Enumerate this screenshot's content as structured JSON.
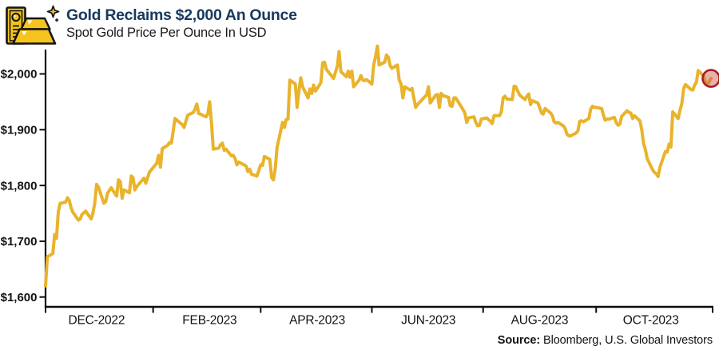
{
  "header": {
    "title": "Gold Reclaims $2,000 An Ounce",
    "subtitle": "Spot Gold Price Per Ounce In USD",
    "icon": "gold-bars-icon",
    "title_color": "#17395E"
  },
  "footer": {
    "source_label": "Source:",
    "source_text": " Bloomberg, U.S. Global Investors"
  },
  "chart_data": {
    "type": "line",
    "title": "Gold Reclaims $2,000 An Ounce",
    "subtitle": "Spot Gold Price Per Ounce In USD",
    "xlabel": "",
    "ylabel": "Spot gold price (USD per ounce)",
    "x_range": [
      "2022-11-03",
      "2023-11-03"
    ],
    "ylim": [
      1600,
      2060
    ],
    "grid": false,
    "legend": "none",
    "line_color": "#E9B32B",
    "axis_color": "#0d0d0d",
    "y_ticks": [
      {
        "value": 2000,
        "label": "$2,000"
      },
      {
        "value": 1900,
        "label": "$1,900"
      },
      {
        "value": 1800,
        "label": "$1,800"
      },
      {
        "value": 1700,
        "label": "$1,700"
      },
      {
        "value": 1600,
        "label": "$1,600"
      }
    ],
    "x_labels": [
      {
        "date": "2022-12-01",
        "label": "DEC-2022"
      },
      {
        "date": "2023-02-01",
        "label": "FEB-2023"
      },
      {
        "date": "2023-04-01",
        "label": "APR-2023"
      },
      {
        "date": "2023-06-01",
        "label": "JUN-2023"
      },
      {
        "date": "2023-08-01",
        "label": "AUG-2023"
      },
      {
        "date": "2023-10-01",
        "label": "OCT-2023"
      }
    ],
    "x_minor_ticks": [
      "2023-01-01",
      "2023-03-01",
      "2023-05-01",
      "2023-07-01",
      "2023-09-01"
    ],
    "highlight": {
      "date": "2023-11-03",
      "value": 1992,
      "fill": "rgba(201,85,75,0.45)",
      "stroke": "#A8201E"
    },
    "series": [
      {
        "name": "Spot Gold",
        "points": [
          [
            "2022-11-03",
            1620
          ],
          [
            "2022-11-04",
            1672
          ],
          [
            "2022-11-07",
            1678
          ],
          [
            "2022-11-08",
            1712
          ],
          [
            "2022-11-09",
            1705
          ],
          [
            "2022-11-10",
            1753
          ],
          [
            "2022-11-11",
            1768
          ],
          [
            "2022-11-14",
            1770
          ],
          [
            "2022-11-15",
            1778
          ],
          [
            "2022-11-16",
            1773
          ],
          [
            "2022-11-17",
            1760
          ],
          [
            "2022-11-18",
            1752
          ],
          [
            "2022-11-21",
            1738
          ],
          [
            "2022-11-22",
            1740
          ],
          [
            "2022-11-23",
            1748
          ],
          [
            "2022-11-25",
            1754
          ],
          [
            "2022-11-28",
            1740
          ],
          [
            "2022-11-29",
            1750
          ],
          [
            "2022-11-30",
            1768
          ],
          [
            "2022-12-01",
            1802
          ],
          [
            "2022-12-02",
            1797
          ],
          [
            "2022-12-05",
            1768
          ],
          [
            "2022-12-06",
            1771
          ],
          [
            "2022-12-07",
            1786
          ],
          [
            "2022-12-09",
            1796
          ],
          [
            "2022-12-12",
            1781
          ],
          [
            "2022-12-13",
            1810
          ],
          [
            "2022-12-14",
            1807
          ],
          [
            "2022-12-15",
            1777
          ],
          [
            "2022-12-16",
            1792
          ],
          [
            "2022-12-19",
            1787
          ],
          [
            "2022-12-20",
            1817
          ],
          [
            "2022-12-21",
            1814
          ],
          [
            "2022-12-22",
            1792
          ],
          [
            "2022-12-23",
            1798
          ],
          [
            "2022-12-27",
            1813
          ],
          [
            "2022-12-28",
            1804
          ],
          [
            "2022-12-29",
            1814
          ],
          [
            "2022-12-30",
            1824
          ],
          [
            "2023-01-03",
            1840
          ],
          [
            "2023-01-04",
            1854
          ],
          [
            "2023-01-05",
            1833
          ],
          [
            "2023-01-06",
            1866
          ],
          [
            "2023-01-09",
            1872
          ],
          [
            "2023-01-10",
            1877
          ],
          [
            "2023-01-11",
            1876
          ],
          [
            "2023-01-12",
            1897
          ],
          [
            "2023-01-13",
            1920
          ],
          [
            "2023-01-17",
            1909
          ],
          [
            "2023-01-18",
            1904
          ],
          [
            "2023-01-20",
            1926
          ],
          [
            "2023-01-23",
            1931
          ],
          [
            "2023-01-24",
            1937
          ],
          [
            "2023-01-25",
            1946
          ],
          [
            "2023-01-26",
            1929
          ],
          [
            "2023-01-27",
            1928
          ],
          [
            "2023-01-30",
            1923
          ],
          [
            "2023-01-31",
            1928
          ],
          [
            "2023-02-01",
            1950
          ],
          [
            "2023-02-02",
            1913
          ],
          [
            "2023-02-03",
            1865
          ],
          [
            "2023-02-06",
            1867
          ],
          [
            "2023-02-07",
            1873
          ],
          [
            "2023-02-08",
            1876
          ],
          [
            "2023-02-09",
            1863
          ],
          [
            "2023-02-10",
            1865
          ],
          [
            "2023-02-13",
            1853
          ],
          [
            "2023-02-14",
            1854
          ],
          [
            "2023-02-15",
            1848
          ],
          [
            "2023-02-16",
            1837
          ],
          [
            "2023-02-17",
            1842
          ],
          [
            "2023-02-21",
            1835
          ],
          [
            "2023-02-22",
            1825
          ],
          [
            "2023-02-23",
            1829
          ],
          [
            "2023-02-24",
            1820
          ],
          [
            "2023-02-27",
            1817
          ],
          [
            "2023-02-28",
            1827
          ],
          [
            "2023-03-01",
            1837
          ],
          [
            "2023-03-02",
            1836
          ],
          [
            "2023-03-03",
            1852
          ],
          [
            "2023-03-06",
            1847
          ],
          [
            "2023-03-07",
            1814
          ],
          [
            "2023-03-08",
            1810
          ],
          [
            "2023-03-09",
            1831
          ],
          [
            "2023-03-10",
            1868
          ],
          [
            "2023-03-13",
            1913
          ],
          [
            "2023-03-14",
            1904
          ],
          [
            "2023-03-15",
            1918
          ],
          [
            "2023-03-16",
            1919
          ],
          [
            "2023-03-17",
            1989
          ],
          [
            "2023-03-20",
            1982
          ],
          [
            "2023-03-21",
            1940
          ],
          [
            "2023-03-22",
            1970
          ],
          [
            "2023-03-23",
            1993
          ],
          [
            "2023-03-24",
            1977
          ],
          [
            "2023-03-27",
            1957
          ],
          [
            "2023-03-28",
            1973
          ],
          [
            "2023-03-29",
            1965
          ],
          [
            "2023-03-30",
            1980
          ],
          [
            "2023-03-31",
            1969
          ],
          [
            "2023-04-03",
            1984
          ],
          [
            "2023-04-04",
            2020
          ],
          [
            "2023-04-05",
            2021
          ],
          [
            "2023-04-06",
            2008
          ],
          [
            "2023-04-10",
            1992
          ],
          [
            "2023-04-11",
            2003
          ],
          [
            "2023-04-12",
            2014
          ],
          [
            "2023-04-13",
            2040
          ],
          [
            "2023-04-14",
            2004
          ],
          [
            "2023-04-17",
            1995
          ],
          [
            "2023-04-18",
            2005
          ],
          [
            "2023-04-19",
            1994
          ],
          [
            "2023-04-20",
            2005
          ],
          [
            "2023-04-21",
            1977
          ],
          [
            "2023-04-24",
            1989
          ],
          [
            "2023-04-25",
            1997
          ],
          [
            "2023-04-26",
            1989
          ],
          [
            "2023-04-27",
            1988
          ],
          [
            "2023-04-28",
            1990
          ],
          [
            "2023-05-01",
            1982
          ],
          [
            "2023-05-02",
            2016
          ],
          [
            "2023-05-03",
            2031
          ],
          [
            "2023-05-04",
            2050
          ],
          [
            "2023-05-05",
            2016
          ],
          [
            "2023-05-08",
            2021
          ],
          [
            "2023-05-09",
            2034
          ],
          [
            "2023-05-10",
            2030
          ],
          [
            "2023-05-11",
            2015
          ],
          [
            "2023-05-12",
            2010
          ],
          [
            "2023-05-15",
            2016
          ],
          [
            "2023-05-16",
            1989
          ],
          [
            "2023-05-17",
            1982
          ],
          [
            "2023-05-18",
            1957
          ],
          [
            "2023-05-19",
            1977
          ],
          [
            "2023-05-22",
            1971
          ],
          [
            "2023-05-23",
            1974
          ],
          [
            "2023-05-24",
            1957
          ],
          [
            "2023-05-25",
            1940
          ],
          [
            "2023-05-26",
            1945
          ],
          [
            "2023-05-30",
            1959
          ],
          [
            "2023-05-31",
            1962
          ],
          [
            "2023-06-01",
            1977
          ],
          [
            "2023-06-02",
            1948
          ],
          [
            "2023-06-05",
            1962
          ],
          [
            "2023-06-06",
            1963
          ],
          [
            "2023-06-07",
            1940
          ],
          [
            "2023-06-08",
            1965
          ],
          [
            "2023-06-09",
            1961
          ],
          [
            "2023-06-12",
            1958
          ],
          [
            "2023-06-13",
            1943
          ],
          [
            "2023-06-14",
            1942
          ],
          [
            "2023-06-15",
            1957
          ],
          [
            "2023-06-16",
            1957
          ],
          [
            "2023-06-20",
            1936
          ],
          [
            "2023-06-21",
            1930
          ],
          [
            "2023-06-22",
            1913
          ],
          [
            "2023-06-23",
            1921
          ],
          [
            "2023-06-26",
            1923
          ],
          [
            "2023-06-27",
            1913
          ],
          [
            "2023-06-28",
            1907
          ],
          [
            "2023-06-29",
            1908
          ],
          [
            "2023-06-30",
            1919
          ],
          [
            "2023-07-03",
            1921
          ],
          [
            "2023-07-05",
            1915
          ],
          [
            "2023-07-06",
            1911
          ],
          [
            "2023-07-07",
            1925
          ],
          [
            "2023-07-10",
            1925
          ],
          [
            "2023-07-11",
            1932
          ],
          [
            "2023-07-12",
            1957
          ],
          [
            "2023-07-13",
            1960
          ],
          [
            "2023-07-14",
            1955
          ],
          [
            "2023-07-17",
            1954
          ],
          [
            "2023-07-18",
            1978
          ],
          [
            "2023-07-19",
            1977
          ],
          [
            "2023-07-20",
            1969
          ],
          [
            "2023-07-21",
            1962
          ],
          [
            "2023-07-24",
            1954
          ],
          [
            "2023-07-25",
            1960
          ],
          [
            "2023-07-26",
            1964
          ],
          [
            "2023-07-27",
            1945
          ],
          [
            "2023-07-28",
            1952
          ],
          [
            "2023-07-31",
            1948
          ],
          [
            "2023-08-01",
            1940
          ],
          [
            "2023-08-02",
            1930
          ],
          [
            "2023-08-03",
            1928
          ],
          [
            "2023-08-04",
            1938
          ],
          [
            "2023-08-07",
            1930
          ],
          [
            "2023-08-08",
            1925
          ],
          [
            "2023-08-09",
            1914
          ],
          [
            "2023-08-10",
            1912
          ],
          [
            "2023-08-11",
            1913
          ],
          [
            "2023-08-14",
            1907
          ],
          [
            "2023-08-15",
            1902
          ],
          [
            "2023-08-16",
            1892
          ],
          [
            "2023-08-17",
            1889
          ],
          [
            "2023-08-18",
            1889
          ],
          [
            "2023-08-21",
            1894
          ],
          [
            "2023-08-22",
            1898
          ],
          [
            "2023-08-23",
            1915
          ],
          [
            "2023-08-24",
            1916
          ],
          [
            "2023-08-25",
            1914
          ],
          [
            "2023-08-28",
            1920
          ],
          [
            "2023-08-29",
            1937
          ],
          [
            "2023-08-30",
            1942
          ],
          [
            "2023-08-31",
            1940
          ],
          [
            "2023-09-01",
            1940
          ],
          [
            "2023-09-04",
            1938
          ],
          [
            "2023-09-05",
            1926
          ],
          [
            "2023-09-06",
            1917
          ],
          [
            "2023-09-07",
            1919
          ],
          [
            "2023-09-08",
            1919
          ],
          [
            "2023-09-11",
            1922
          ],
          [
            "2023-09-12",
            1913
          ],
          [
            "2023-09-13",
            1908
          ],
          [
            "2023-09-14",
            1910
          ],
          [
            "2023-09-15",
            1924
          ],
          [
            "2023-09-18",
            1934
          ],
          [
            "2023-09-19",
            1931
          ],
          [
            "2023-09-20",
            1930
          ],
          [
            "2023-09-21",
            1920
          ],
          [
            "2023-09-22",
            1925
          ],
          [
            "2023-09-25",
            1916
          ],
          [
            "2023-09-26",
            1900
          ],
          [
            "2023-09-27",
            1875
          ],
          [
            "2023-09-28",
            1865
          ],
          [
            "2023-09-29",
            1848
          ],
          [
            "2023-10-02",
            1828
          ],
          [
            "2023-10-03",
            1823
          ],
          [
            "2023-10-04",
            1821
          ],
          [
            "2023-10-05",
            1816
          ],
          [
            "2023-10-06",
            1833
          ],
          [
            "2023-10-09",
            1861
          ],
          [
            "2023-10-10",
            1860
          ],
          [
            "2023-10-11",
            1874
          ],
          [
            "2023-10-12",
            1869
          ],
          [
            "2023-10-13",
            1932
          ],
          [
            "2023-10-16",
            1920
          ],
          [
            "2023-10-17",
            1935
          ],
          [
            "2023-10-18",
            1947
          ],
          [
            "2023-10-19",
            1974
          ],
          [
            "2023-10-20",
            1981
          ],
          [
            "2023-10-23",
            1972
          ],
          [
            "2023-10-24",
            1971
          ],
          [
            "2023-10-25",
            1980
          ],
          [
            "2023-10-26",
            1985
          ],
          [
            "2023-10-27",
            2006
          ],
          [
            "2023-10-30",
            1996
          ],
          [
            "2023-10-31",
            1984
          ],
          [
            "2023-11-01",
            1982
          ],
          [
            "2023-11-02",
            1986
          ],
          [
            "2023-11-03",
            1992
          ]
        ]
      }
    ]
  }
}
